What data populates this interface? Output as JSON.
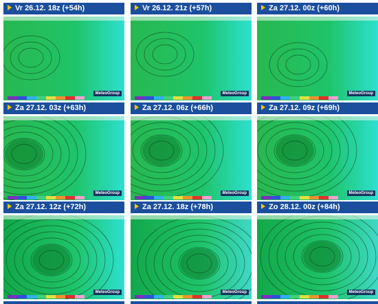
{
  "panels": [
    {
      "label": "Vr 26.12. 18z (+54h)"
    },
    {
      "label": "Vr 26.12. 21z (+57h)"
    },
    {
      "label": "Za 27.12. 00z (+60h)"
    },
    {
      "label": "Za 27.12. 03z (+63h)"
    },
    {
      "label": "Za 27.12. 06z (+66h)"
    },
    {
      "label": "Za 27.12. 09z (+69h)"
    },
    {
      "label": "Za 27.12. 12z (+72h)"
    },
    {
      "label": "Za 27.12. 18z (+78h)"
    },
    {
      "label": "Zo 28.12. 00z (+84h)"
    }
  ],
  "logo": "MeteoGroup"
}
